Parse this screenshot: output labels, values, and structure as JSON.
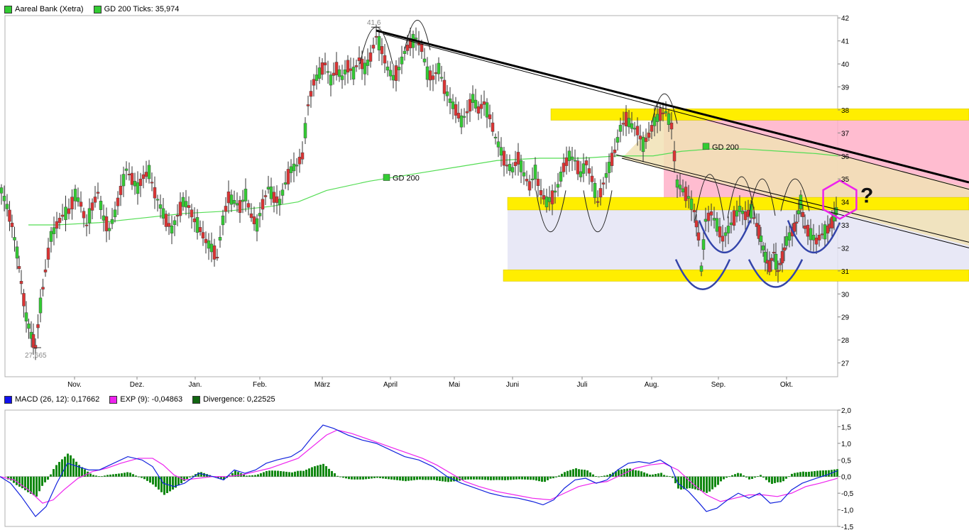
{
  "chart_data": [
    {
      "type": "candlestick",
      "title": "Aareal Bank (Xetra)",
      "legend": [
        {
          "label": "Aareal Bank (Xetra)",
          "color": "#33cc33"
        },
        {
          "label": "GD 200 Ticks: 35,974",
          "color": "#33cc33"
        }
      ],
      "x_tick_labels": [
        "Nov.",
        "Dez.",
        "Jan.",
        "Feb.",
        "März",
        "April",
        "Mai",
        "Juni",
        "Juli",
        "Aug.",
        "Sep.",
        "Okt."
      ],
      "y_tick_labels": [
        "27",
        "28",
        "29",
        "30",
        "31",
        "32",
        "33",
        "34",
        "35",
        "36",
        "37",
        "38",
        "39",
        "40",
        "41",
        "42"
      ],
      "ylim": [
        26.4,
        42.1
      ],
      "annotations": {
        "high_label": "41,6",
        "low_label": "27,665",
        "gd200_label_1": "GD 200",
        "gd200_label_2": "GD 200",
        "last_price_label": "34",
        "question_mark": "?"
      },
      "price_path": [
        [
          0,
          34.5
        ],
        [
          8,
          33.8
        ],
        [
          15,
          33.0
        ],
        [
          22,
          31.8
        ],
        [
          28,
          30.5
        ],
        [
          35,
          29.0
        ],
        [
          42,
          28.2
        ],
        [
          48,
          27.7
        ],
        [
          55,
          29.5
        ],
        [
          62,
          31.0
        ],
        [
          70,
          32.5
        ],
        [
          78,
          33.0
        ],
        [
          86,
          33.4
        ],
        [
          95,
          33.6
        ],
        [
          104,
          34.3
        ],
        [
          112,
          33.9
        ],
        [
          120,
          33.0
        ],
        [
          128,
          33.8
        ],
        [
          136,
          34.4
        ],
        [
          144,
          33.3
        ],
        [
          152,
          32.8
        ],
        [
          160,
          33.5
        ],
        [
          168,
          34.5
        ],
        [
          176,
          35.4
        ],
        [
          184,
          35.0
        ],
        [
          192,
          34.6
        ],
        [
          200,
          35.1
        ],
        [
          208,
          35.3
        ],
        [
          216,
          34.4
        ],
        [
          224,
          33.8
        ],
        [
          232,
          33.2
        ],
        [
          240,
          32.8
        ],
        [
          248,
          33.4
        ],
        [
          256,
          34.0
        ],
        [
          264,
          33.8
        ],
        [
          272,
          33.2
        ],
        [
          280,
          32.8
        ],
        [
          288,
          32.3
        ],
        [
          296,
          32.0
        ],
        [
          304,
          31.6
        ],
        [
          312,
          33.2
        ],
        [
          320,
          34.2
        ],
        [
          328,
          34.0
        ],
        [
          336,
          33.8
        ],
        [
          344,
          34.3
        ],
        [
          352,
          33.4
        ],
        [
          360,
          33.0
        ],
        [
          368,
          33.9
        ],
        [
          376,
          34.6
        ],
        [
          384,
          34.2
        ],
        [
          392,
          34.0
        ],
        [
          400,
          34.8
        ],
        [
          408,
          35.4
        ],
        [
          416,
          35.6
        ],
        [
          424,
          36.0
        ],
        [
          432,
          38.2
        ],
        [
          440,
          39.2
        ],
        [
          448,
          39.6
        ],
        [
          456,
          40.0
        ],
        [
          464,
          39.3
        ],
        [
          472,
          39.8
        ],
        [
          480,
          39.4
        ],
        [
          488,
          39.9
        ],
        [
          496,
          39.6
        ],
        [
          504,
          40.2
        ],
        [
          512,
          39.8
        ],
        [
          520,
          40.3
        ],
        [
          528,
          41.2
        ],
        [
          536,
          40.6
        ],
        [
          544,
          39.8
        ],
        [
          552,
          39.4
        ],
        [
          560,
          39.8
        ],
        [
          568,
          40.5
        ],
        [
          576,
          40.9
        ],
        [
          584,
          41.1
        ],
        [
          592,
          40.7
        ],
        [
          600,
          39.6
        ],
        [
          608,
          39.4
        ],
        [
          616,
          39.8
        ],
        [
          624,
          39.0
        ],
        [
          632,
          38.4
        ],
        [
          640,
          38.0
        ],
        [
          648,
          37.5
        ],
        [
          656,
          37.9
        ],
        [
          664,
          38.5
        ],
        [
          672,
          38.0
        ],
        [
          680,
          38.3
        ],
        [
          688,
          37.7
        ],
        [
          696,
          36.8
        ],
        [
          704,
          36.2
        ],
        [
          712,
          35.6
        ],
        [
          720,
          35.4
        ],
        [
          728,
          35.9
        ],
        [
          736,
          35.2
        ],
        [
          744,
          34.7
        ],
        [
          752,
          35.3
        ],
        [
          760,
          34.4
        ],
        [
          768,
          34.0
        ],
        [
          776,
          34.2
        ],
        [
          784,
          34.7
        ],
        [
          792,
          35.5
        ],
        [
          800,
          36.0
        ],
        [
          808,
          35.8
        ],
        [
          816,
          35.2
        ],
        [
          824,
          35.7
        ],
        [
          832,
          35.0
        ],
        [
          840,
          34.0
        ],
        [
          848,
          34.8
        ],
        [
          856,
          35.5
        ],
        [
          864,
          36.2
        ],
        [
          872,
          37.2
        ],
        [
          880,
          37.6
        ],
        [
          888,
          37.3
        ],
        [
          896,
          37.1
        ],
        [
          904,
          36.5
        ],
        [
          912,
          36.9
        ],
        [
          920,
          37.5
        ],
        [
          928,
          37.8
        ],
        [
          936,
          37.9
        ],
        [
          944,
          37.3
        ],
        [
          948,
          36.0
        ],
        [
          952,
          34.8
        ],
        [
          960,
          34.5
        ],
        [
          968,
          34.2
        ],
        [
          976,
          33.6
        ],
        [
          982,
          32.5
        ],
        [
          986,
          31.1
        ],
        [
          992,
          33.2
        ],
        [
          1000,
          33.5
        ],
        [
          1008,
          33.0
        ],
        [
          1016,
          32.4
        ],
        [
          1024,
          32.8
        ],
        [
          1032,
          33.3
        ],
        [
          1040,
          33.7
        ],
        [
          1048,
          33.4
        ],
        [
          1056,
          33.6
        ],
        [
          1064,
          33.0
        ],
        [
          1070,
          32.4
        ],
        [
          1076,
          31.6
        ],
        [
          1082,
          31.2
        ],
        [
          1088,
          31.8
        ],
        [
          1094,
          31.0
        ],
        [
          1100,
          31.6
        ],
        [
          1106,
          32.3
        ],
        [
          1114,
          32.7
        ],
        [
          1120,
          33.1
        ],
        [
          1126,
          34.0
        ],
        [
          1132,
          32.9
        ],
        [
          1140,
          32.6
        ],
        [
          1148,
          32.3
        ],
        [
          1156,
          32.6
        ],
        [
          1164,
          32.8
        ],
        [
          1170,
          33.1
        ],
        [
          1176,
          33.6
        ],
        [
          1180,
          34.1
        ]
      ],
      "gd200_path": [
        [
          40,
          33.0
        ],
        [
          80,
          33.0
        ],
        [
          140,
          33.1
        ],
        [
          200,
          33.3
        ],
        [
          260,
          33.5
        ],
        [
          320,
          33.6
        ],
        [
          380,
          33.8
        ],
        [
          420,
          34.0
        ],
        [
          460,
          34.5
        ],
        [
          520,
          34.9
        ],
        [
          580,
          35.2
        ],
        [
          640,
          35.5
        ],
        [
          700,
          35.8
        ],
        [
          760,
          35.9
        ],
        [
          820,
          35.9
        ],
        [
          870,
          36.0
        ],
        [
          920,
          36.0
        ],
        [
          960,
          36.2
        ],
        [
          1000,
          36.3
        ],
        [
          1050,
          36.3
        ],
        [
          1100,
          36.2
        ],
        [
          1150,
          36.1
        ],
        [
          1180,
          36.0
        ]
      ],
      "support_resistance_bands": [
        {
          "from": 37.55,
          "to": 38.05,
          "color": "#ffee00"
        },
        {
          "from": 33.65,
          "to": 34.2,
          "color": "#ffee00"
        },
        {
          "from": 30.55,
          "to": 31.05,
          "color": "#ffee00"
        }
      ],
      "zones": [
        {
          "from": 34.2,
          "to": 37.55,
          "color": "#ffb0c8"
        },
        {
          "from": 31.05,
          "to": 33.65,
          "color": "#e4e4f4"
        }
      ],
      "trend_lines": [
        {
          "x1": 530,
          "y1": 41.45,
          "x2": 1365,
          "y2": 34.85,
          "width": 3
        },
        {
          "x1": 540,
          "y1": 41.3,
          "x2": 1365,
          "y2": 34.55,
          "width": 1
        },
        {
          "x1": 876,
          "y1": 35.9,
          "x2": 1365,
          "y2": 32.0,
          "width": 1
        },
        {
          "x1": 868,
          "y1": 36.05,
          "x2": 1365,
          "y2": 32.25,
          "width": 1
        }
      ]
    },
    {
      "type": "line+bar",
      "title": "MACD (26, 12)",
      "legend": [
        {
          "label": "MACD (26, 12): 0,17662",
          "color": "#1111ee"
        },
        {
          "label": "EXP (9): -0,04863",
          "color": "#ee22ee"
        },
        {
          "label": "Divergence: 0,22525",
          "color": "#116611"
        }
      ],
      "y_tick_labels": [
        "2,0",
        "1,5",
        "1,0",
        "0,5",
        "0,0",
        "-0,5",
        "-1,0",
        "-1,5"
      ],
      "ylim": [
        -1.5,
        2.0
      ],
      "macd": [
        [
          0,
          0.0
        ],
        [
          15,
          -0.2
        ],
        [
          30,
          -0.6
        ],
        [
          50,
          -1.2
        ],
        [
          65,
          -0.9
        ],
        [
          80,
          -0.2
        ],
        [
          95,
          0.4
        ],
        [
          110,
          0.3
        ],
        [
          125,
          0.2
        ],
        [
          140,
          0.2
        ],
        [
          160,
          0.4
        ],
        [
          180,
          0.6
        ],
        [
          200,
          0.5
        ],
        [
          215,
          0.3
        ],
        [
          230,
          -0.2
        ],
        [
          245,
          -0.3
        ],
        [
          260,
          -0.2
        ],
        [
          280,
          0.1
        ],
        [
          300,
          0.0
        ],
        [
          315,
          -0.1
        ],
        [
          330,
          0.2
        ],
        [
          345,
          0.1
        ],
        [
          360,
          0.2
        ],
        [
          375,
          0.4
        ],
        [
          390,
          0.5
        ],
        [
          410,
          0.6
        ],
        [
          425,
          0.8
        ],
        [
          440,
          1.2
        ],
        [
          455,
          1.55
        ],
        [
          470,
          1.45
        ],
        [
          490,
          1.25
        ],
        [
          510,
          1.1
        ],
        [
          530,
          1.0
        ],
        [
          550,
          0.8
        ],
        [
          570,
          0.6
        ],
        [
          590,
          0.5
        ],
        [
          610,
          0.3
        ],
        [
          630,
          0.0
        ],
        [
          650,
          -0.2
        ],
        [
          670,
          -0.35
        ],
        [
          690,
          -0.5
        ],
        [
          710,
          -0.6
        ],
        [
          730,
          -0.65
        ],
        [
          750,
          -0.75
        ],
        [
          765,
          -0.85
        ],
        [
          780,
          -0.7
        ],
        [
          795,
          -0.35
        ],
        [
          810,
          -0.1
        ],
        [
          825,
          -0.05
        ],
        [
          840,
          -0.2
        ],
        [
          855,
          -0.1
        ],
        [
          870,
          0.2
        ],
        [
          885,
          0.4
        ],
        [
          900,
          0.45
        ],
        [
          915,
          0.4
        ],
        [
          930,
          0.5
        ],
        [
          945,
          0.3
        ],
        [
          955,
          -0.2
        ],
        [
          970,
          -0.45
        ],
        [
          985,
          -0.8
        ],
        [
          995,
          -1.05
        ],
        [
          1010,
          -0.95
        ],
        [
          1025,
          -0.7
        ],
        [
          1040,
          -0.5
        ],
        [
          1055,
          -0.65
        ],
        [
          1070,
          -0.5
        ],
        [
          1085,
          -0.8
        ],
        [
          1100,
          -0.75
        ],
        [
          1115,
          -0.4
        ],
        [
          1130,
          -0.2
        ],
        [
          1150,
          -0.05
        ],
        [
          1165,
          0.05
        ],
        [
          1180,
          0.18
        ]
      ],
      "exp": [
        [
          0,
          0.0
        ],
        [
          20,
          -0.1
        ],
        [
          40,
          -0.4
        ],
        [
          60,
          -0.8
        ],
        [
          75,
          -0.7
        ],
        [
          90,
          -0.4
        ],
        [
          110,
          -0.05
        ],
        [
          130,
          0.15
        ],
        [
          150,
          0.25
        ],
        [
          170,
          0.4
        ],
        [
          195,
          0.55
        ],
        [
          215,
          0.55
        ],
        [
          230,
          0.35
        ],
        [
          245,
          0.05
        ],
        [
          260,
          -0.1
        ],
        [
          280,
          -0.05
        ],
        [
          300,
          0.0
        ],
        [
          320,
          0.0
        ],
        [
          340,
          0.05
        ],
        [
          360,
          0.15
        ],
        [
          380,
          0.25
        ],
        [
          400,
          0.4
        ],
        [
          420,
          0.55
        ],
        [
          440,
          0.9
        ],
        [
          460,
          1.25
        ],
        [
          475,
          1.4
        ],
        [
          495,
          1.3
        ],
        [
          515,
          1.15
        ],
        [
          535,
          1.0
        ],
        [
          555,
          0.85
        ],
        [
          575,
          0.7
        ],
        [
          595,
          0.55
        ],
        [
          615,
          0.35
        ],
        [
          635,
          0.1
        ],
        [
          655,
          -0.15
        ],
        [
          675,
          -0.3
        ],
        [
          700,
          -0.45
        ],
        [
          725,
          -0.55
        ],
        [
          750,
          -0.65
        ],
        [
          775,
          -0.7
        ],
        [
          795,
          -0.5
        ],
        [
          815,
          -0.3
        ],
        [
          835,
          -0.2
        ],
        [
          855,
          -0.15
        ],
        [
          875,
          0.05
        ],
        [
          895,
          0.25
        ],
        [
          915,
          0.35
        ],
        [
          935,
          0.4
        ],
        [
          955,
          0.2
        ],
        [
          975,
          -0.2
        ],
        [
          995,
          -0.55
        ],
        [
          1015,
          -0.75
        ],
        [
          1035,
          -0.65
        ],
        [
          1055,
          -0.55
        ],
        [
          1075,
          -0.55
        ],
        [
          1095,
          -0.6
        ],
        [
          1115,
          -0.5
        ],
        [
          1135,
          -0.3
        ],
        [
          1155,
          -0.2
        ],
        [
          1180,
          -0.05
        ]
      ]
    }
  ]
}
